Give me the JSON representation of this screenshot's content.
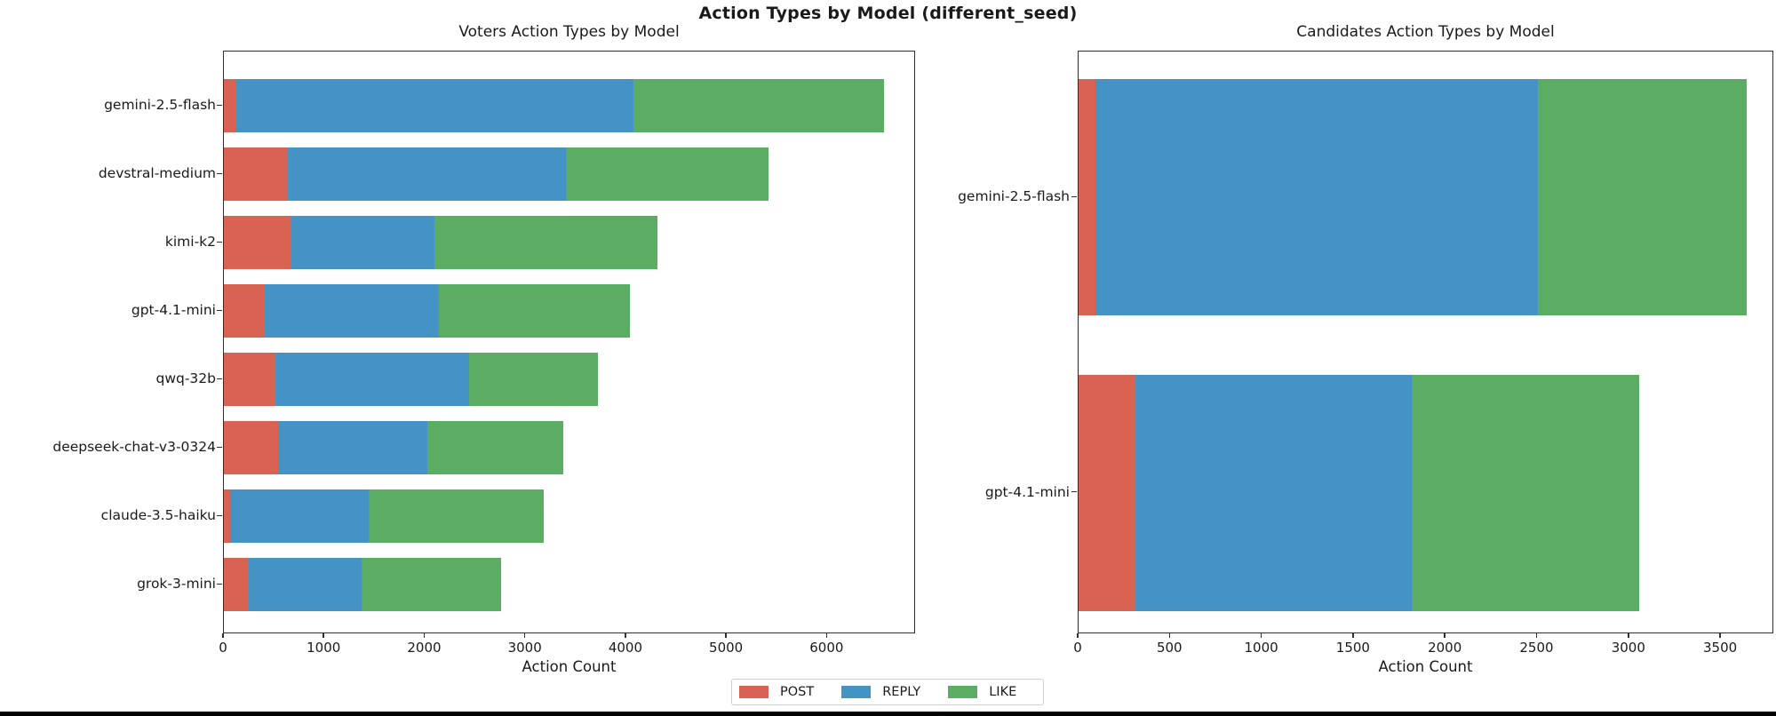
{
  "figure": {
    "suptitle": "Action Types by Model (different_seed)",
    "background": "#ffffff"
  },
  "legend": {
    "position": "lower center",
    "items": [
      {
        "label": "POST",
        "color": "#D96352"
      },
      {
        "label": "REPLY",
        "color": "#4593C4"
      },
      {
        "label": "LIKE",
        "color": "#5BAD63"
      }
    ]
  },
  "chart_data": [
    {
      "type": "bar",
      "orientation": "horizontal",
      "stacked": true,
      "title": "Voters Action Types by Model",
      "xlabel": "Action Count",
      "ylabel": "",
      "grid": false,
      "categories": [
        "gemini-2.5-flash",
        "devstral-medium",
        "kimi-k2",
        "gpt-4.1-mini",
        "qwq-32b",
        "deepseek-chat-v3-0324",
        "claude-3.5-haiku",
        "grok-3-mini"
      ],
      "series": [
        {
          "name": "POST",
          "color": "#D96352",
          "values": [
            120,
            640,
            670,
            410,
            510,
            540,
            60,
            250
          ]
        },
        {
          "name": "REPLY",
          "color": "#4593C4",
          "values": [
            3960,
            2770,
            1430,
            1730,
            1930,
            1490,
            1380,
            1120
          ]
        },
        {
          "name": "LIKE",
          "color": "#5BAD63",
          "values": [
            2500,
            2020,
            2220,
            1910,
            1290,
            1350,
            1750,
            1390
          ]
        }
      ],
      "totals": [
        6580,
        5430,
        4320,
        4050,
        3730,
        3380,
        3190,
        2760
      ],
      "xlim": [
        0,
        6880
      ],
      "xticks": [
        0,
        1000,
        2000,
        3000,
        4000,
        5000,
        6000
      ]
    },
    {
      "type": "bar",
      "orientation": "horizontal",
      "stacked": true,
      "title": "Candidates Action Types by Model",
      "xlabel": "Action Count",
      "ylabel": "",
      "grid": false,
      "categories": [
        "gemini-2.5-flash",
        "gpt-4.1-mini"
      ],
      "series": [
        {
          "name": "POST",
          "color": "#D96352",
          "values": [
            90,
            310
          ]
        },
        {
          "name": "REPLY",
          "color": "#4593C4",
          "values": [
            2420,
            1510
          ]
        },
        {
          "name": "LIKE",
          "color": "#5BAD63",
          "values": [
            1140,
            1240
          ]
        }
      ],
      "totals": [
        3650,
        3060
      ],
      "xlim": [
        0,
        3790
      ],
      "xticks": [
        0,
        500,
        1000,
        1500,
        2000,
        2500,
        3000,
        3500
      ]
    }
  ]
}
